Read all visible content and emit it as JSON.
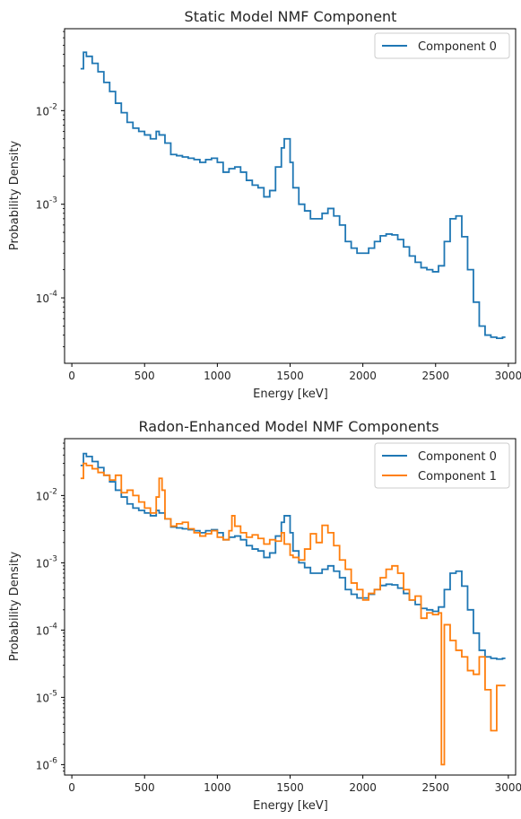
{
  "chart_data": [
    {
      "type": "line",
      "drawstyle": "steps",
      "title": "Static Model NMF Component",
      "xlabel": "Energy [keV]",
      "ylabel": "Probability Density",
      "xlim": [
        -50,
        3050
      ],
      "ylim": [
        2e-05,
        0.075
      ],
      "yscale": "log",
      "xticks": [
        0,
        500,
        1000,
        1500,
        2000,
        2500,
        3000
      ],
      "xtick_labels": [
        "0",
        "500",
        "1000",
        "1500",
        "2000",
        "2500",
        "3000"
      ],
      "yticks": [
        0.0001,
        0.001,
        0.01
      ],
      "ytick_labels": [
        "10",
        "10",
        "10"
      ],
      "ytick_exponents": [
        "-4",
        "-3",
        "-2"
      ],
      "grid": false,
      "legend_position": "top-right",
      "series": [
        {
          "name": "Component 0",
          "color": "#1f77b4",
          "x": [
            60,
            80,
            100,
            140,
            180,
            220,
            260,
            300,
            340,
            380,
            420,
            460,
            500,
            540,
            580,
            600,
            640,
            680,
            720,
            760,
            800,
            840,
            880,
            920,
            960,
            1000,
            1040,
            1080,
            1120,
            1160,
            1200,
            1240,
            1280,
            1320,
            1360,
            1400,
            1440,
            1460,
            1500,
            1520,
            1560,
            1600,
            1640,
            1680,
            1720,
            1760,
            1800,
            1840,
            1880,
            1920,
            1960,
            2000,
            2040,
            2080,
            2120,
            2160,
            2200,
            2240,
            2280,
            2320,
            2360,
            2400,
            2440,
            2480,
            2520,
            2560,
            2600,
            2640,
            2680,
            2720,
            2760,
            2800,
            2840,
            2880,
            2920,
            2960
          ],
          "y": [
            0.028,
            0.042,
            0.038,
            0.032,
            0.026,
            0.02,
            0.016,
            0.012,
            0.0095,
            0.0075,
            0.0065,
            0.006,
            0.0055,
            0.005,
            0.006,
            0.0055,
            0.0045,
            0.0034,
            0.0033,
            0.0032,
            0.0031,
            0.003,
            0.0028,
            0.003,
            0.0031,
            0.0028,
            0.0022,
            0.0024,
            0.0025,
            0.0022,
            0.0018,
            0.0016,
            0.0015,
            0.0012,
            0.0014,
            0.0025,
            0.004,
            0.005,
            0.0028,
            0.0015,
            0.001,
            0.00085,
            0.0007,
            0.0007,
            0.0008,
            0.0009,
            0.00075,
            0.0006,
            0.0004,
            0.00034,
            0.0003,
            0.0003,
            0.00034,
            0.0004,
            0.00046,
            0.00048,
            0.00047,
            0.00042,
            0.00035,
            0.00028,
            0.00024,
            0.00021,
            0.0002,
            0.00019,
            0.00022,
            0.0004,
            0.0007,
            0.00075,
            0.00045,
            0.0002,
            9e-05,
            5e-05,
            4e-05,
            3.8e-05,
            3.7e-05,
            3.8e-05
          ]
        }
      ]
    },
    {
      "type": "line",
      "drawstyle": "steps",
      "title": "Radon-Enhanced Model NMF Components",
      "xlabel": "Energy [keV]",
      "ylabel": "Probability Density",
      "xlim": [
        -50,
        3050
      ],
      "ylim": [
        7e-07,
        0.07
      ],
      "yscale": "log",
      "xticks": [
        0,
        500,
        1000,
        1500,
        2000,
        2500,
        3000
      ],
      "xtick_labels": [
        "0",
        "500",
        "1000",
        "1500",
        "2000",
        "2500",
        "3000"
      ],
      "yticks": [
        1e-06,
        1e-05,
        0.0001,
        0.001,
        0.01
      ],
      "ytick_labels": [
        "10",
        "10",
        "10",
        "10",
        "10"
      ],
      "ytick_exponents": [
        "-6",
        "-5",
        "-4",
        "-3",
        "-2"
      ],
      "grid": false,
      "legend_position": "top-right",
      "series": [
        {
          "name": "Component 0",
          "color": "#1f77b4",
          "x": [
            60,
            80,
            100,
            140,
            180,
            220,
            260,
            300,
            340,
            380,
            420,
            460,
            500,
            540,
            580,
            600,
            640,
            680,
            720,
            760,
            800,
            840,
            880,
            920,
            960,
            1000,
            1040,
            1080,
            1120,
            1160,
            1200,
            1240,
            1280,
            1320,
            1360,
            1400,
            1440,
            1460,
            1500,
            1520,
            1560,
            1600,
            1640,
            1680,
            1720,
            1760,
            1800,
            1840,
            1880,
            1920,
            1960,
            2000,
            2040,
            2080,
            2120,
            2160,
            2200,
            2240,
            2280,
            2320,
            2360,
            2400,
            2440,
            2480,
            2520,
            2560,
            2600,
            2640,
            2680,
            2720,
            2760,
            2800,
            2840,
            2880,
            2920,
            2960
          ],
          "y": [
            0.028,
            0.042,
            0.038,
            0.032,
            0.026,
            0.02,
            0.016,
            0.012,
            0.0095,
            0.0075,
            0.0065,
            0.006,
            0.0055,
            0.005,
            0.006,
            0.0055,
            0.0045,
            0.0034,
            0.0033,
            0.0032,
            0.0031,
            0.003,
            0.0028,
            0.003,
            0.0031,
            0.0028,
            0.0022,
            0.0024,
            0.0025,
            0.0022,
            0.0018,
            0.0016,
            0.0015,
            0.0012,
            0.0014,
            0.0025,
            0.004,
            0.005,
            0.0028,
            0.0015,
            0.001,
            0.00085,
            0.0007,
            0.0007,
            0.0008,
            0.0009,
            0.00075,
            0.0006,
            0.0004,
            0.00034,
            0.0003,
            0.0003,
            0.00034,
            0.0004,
            0.00046,
            0.00048,
            0.00047,
            0.00042,
            0.00035,
            0.00028,
            0.00024,
            0.00021,
            0.0002,
            0.00019,
            0.00022,
            0.0004,
            0.0007,
            0.00075,
            0.00045,
            0.0002,
            9e-05,
            5e-05,
            4e-05,
            3.8e-05,
            3.7e-05,
            3.8e-05
          ]
        },
        {
          "name": "Component 1",
          "color": "#ff7f0e",
          "x": [
            60,
            80,
            100,
            140,
            180,
            220,
            260,
            300,
            340,
            380,
            420,
            460,
            500,
            540,
            580,
            600,
            620,
            640,
            680,
            720,
            760,
            800,
            840,
            880,
            920,
            960,
            1000,
            1040,
            1080,
            1100,
            1120,
            1160,
            1200,
            1240,
            1280,
            1320,
            1360,
            1400,
            1440,
            1460,
            1500,
            1520,
            1560,
            1600,
            1640,
            1680,
            1720,
            1760,
            1800,
            1840,
            1880,
            1920,
            1960,
            2000,
            2040,
            2080,
            2120,
            2160,
            2200,
            2240,
            2280,
            2320,
            2360,
            2400,
            2440,
            2480,
            2520,
            2540,
            2560,
            2600,
            2640,
            2680,
            2720,
            2760,
            2800,
            2840,
            2880,
            2920,
            2960
          ],
          "y": [
            0.018,
            0.03,
            0.028,
            0.025,
            0.022,
            0.02,
            0.017,
            0.02,
            0.011,
            0.012,
            0.01,
            0.008,
            0.0065,
            0.0055,
            0.0095,
            0.018,
            0.012,
            0.0045,
            0.0035,
            0.0038,
            0.004,
            0.0032,
            0.0028,
            0.0025,
            0.0027,
            0.003,
            0.0024,
            0.0022,
            0.003,
            0.005,
            0.0035,
            0.0028,
            0.0024,
            0.0026,
            0.0023,
            0.0019,
            0.0022,
            0.0021,
            0.0028,
            0.0019,
            0.0013,
            0.0012,
            0.0011,
            0.0016,
            0.0027,
            0.002,
            0.0036,
            0.0028,
            0.0018,
            0.0011,
            0.0008,
            0.0005,
            0.0004,
            0.00028,
            0.00035,
            0.0004,
            0.0006,
            0.0008,
            0.0009,
            0.0007,
            0.0004,
            0.00028,
            0.00032,
            0.00015,
            0.00018,
            0.00017,
            0.00018,
            1e-06,
            0.00012,
            7e-05,
            5e-05,
            4e-05,
            2.5e-05,
            2.2e-05,
            4e-05,
            1.3e-05,
            3.2e-06,
            1.5e-05,
            1.5e-05
          ]
        }
      ]
    }
  ]
}
